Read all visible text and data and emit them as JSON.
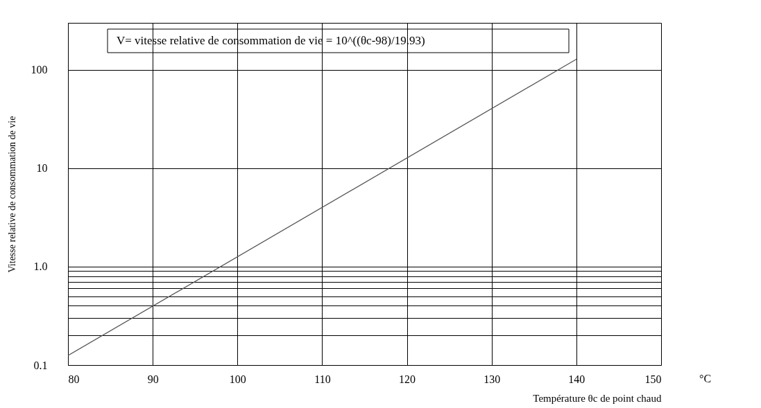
{
  "chart_data": {
    "type": "line",
    "xlabel": "Température θc de point chaud",
    "ylabel": "Vitesse relative de consommation de vie",
    "annotations": [
      "V= vitesse relative de consommation de vie = 10^((θc-98)/19.93)",
      "°C"
    ],
    "x": [
      80,
      140
    ],
    "series": [
      {
        "color": "#555555",
        "values": [
          0.125,
          128
        ]
      }
    ],
    "log": true,
    "xlim": [
      80,
      150
    ],
    "xticks": [
      80,
      90,
      100,
      110,
      120,
      130,
      140,
      150
    ],
    "ylim": [
      0.1,
      300
    ],
    "yticks": [
      {
        "value": 0.1,
        "label": "0.1"
      },
      {
        "value": 0.2,
        "label": null
      },
      {
        "value": 0.3,
        "label": null
      },
      {
        "value": 0.4,
        "label": null
      },
      {
        "value": 0.5,
        "label": null
      },
      {
        "value": 0.6,
        "label": null
      },
      {
        "value": 0.7,
        "label": null
      },
      {
        "value": 0.8,
        "label": null
      },
      {
        "value": 0.9,
        "label": null
      },
      {
        "value": 1,
        "label": "1.0"
      },
      10,
      100,
      {
        "value": 300,
        "label": null
      }
    ],
    "grid": true,
    "marker": "none",
    "line_style": "solid"
  }
}
